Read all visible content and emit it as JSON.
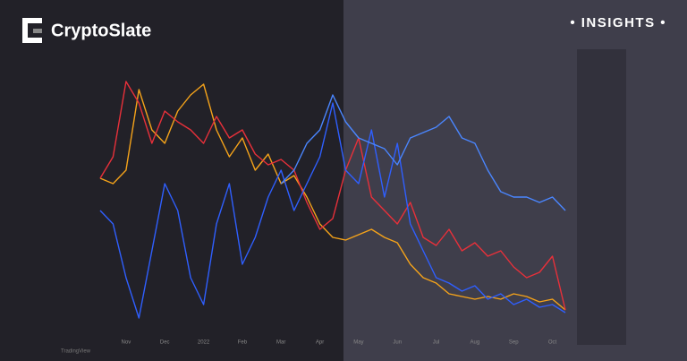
{
  "brand": "CryptoSlate",
  "tag": "• INSIGHTS •",
  "footer": "TradingView",
  "chart_data": {
    "type": "line",
    "categories": [
      null,
      null,
      "Nov",
      null,
      null,
      "Dec",
      null,
      null,
      "2022",
      null,
      null,
      "Feb",
      null,
      null,
      "Mar",
      null,
      null,
      "Apr",
      null,
      null,
      "May",
      null,
      null,
      "Jun",
      null,
      null,
      "Jul",
      null,
      null,
      "Aug",
      null,
      null,
      "Sep",
      null,
      null,
      "Oct",
      null
    ],
    "ylim": [
      0,
      100
    ],
    "series": [
      {
        "color": "#f5a31a",
        "values": [
          57,
          55,
          60,
          90,
          75,
          70,
          82,
          88,
          92,
          75,
          65,
          72,
          60,
          66,
          55,
          58,
          50,
          40,
          35,
          34,
          36,
          38,
          35,
          33,
          25,
          20,
          18,
          14,
          13,
          12,
          13,
          12,
          14,
          13,
          11,
          12,
          8
        ]
      },
      {
        "color": "#e8303a",
        "values": [
          57,
          65,
          93,
          85,
          70,
          82,
          78,
          75,
          70,
          80,
          72,
          75,
          66,
          62,
          64,
          60,
          48,
          38,
          42,
          60,
          72,
          50,
          45,
          40,
          48,
          35,
          32,
          38,
          30,
          33,
          28,
          30,
          24,
          20,
          22,
          28,
          8
        ]
      },
      {
        "color": "#2f5fff",
        "values": [
          45,
          40,
          20,
          5,
          30,
          55,
          45,
          20,
          10,
          40,
          55,
          25,
          35,
          50,
          60,
          45,
          55,
          65,
          85,
          60,
          55,
          75,
          50,
          70,
          40,
          30,
          20,
          18,
          15,
          17,
          12,
          14,
          10,
          12,
          9,
          10,
          7
        ]
      },
      {
        "color": "#4a86ff",
        "values": [
          null,
          null,
          null,
          null,
          null,
          null,
          null,
          null,
          null,
          null,
          null,
          null,
          null,
          null,
          55,
          60,
          70,
          75,
          88,
          78,
          72,
          70,
          68,
          62,
          72,
          74,
          76,
          80,
          72,
          70,
          60,
          52,
          50,
          50,
          48,
          50,
          45
        ]
      }
    ]
  }
}
